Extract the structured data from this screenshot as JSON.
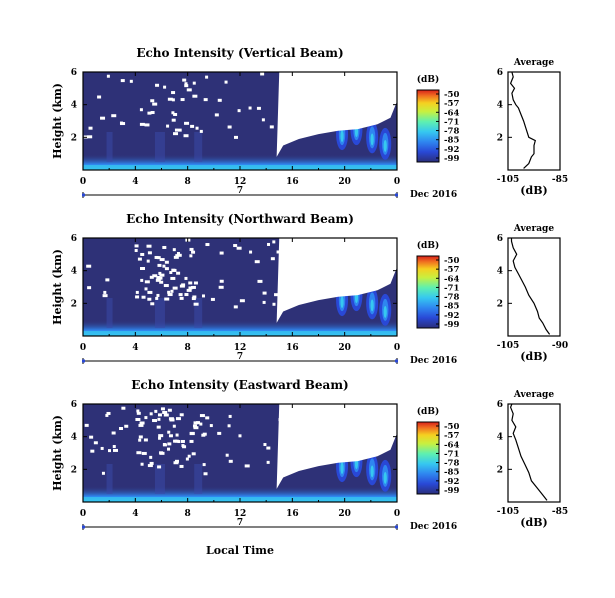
{
  "chart_data": [
    {
      "type": "heatmap",
      "title": "Echo Intensity (Vertical Beam)",
      "ylabel": "Height (km)",
      "xlabel": "",
      "x_ticks": [
        "0",
        "4",
        "8",
        "12",
        "16",
        "20",
        "0"
      ],
      "y_ticks": [
        "2",
        "4",
        "6"
      ],
      "date_day": "7",
      "date_label": "Dec 2016",
      "xlim_hours": [
        0,
        24
      ],
      "ylim_km": [
        0,
        6
      ],
      "colorbar": {
        "unit": "(dB)",
        "ticks": [
          "-50",
          "-57",
          "-64",
          "-71",
          "-78",
          "-85",
          "-92",
          "-99"
        ]
      },
      "profile": {
        "title": "Average",
        "xlabel": "(dB)",
        "x_ticks": [
          "-105",
          "-85"
        ],
        "y_ticks": [
          "2",
          "4",
          "6"
        ],
        "xlim": [
          -105,
          -85
        ],
        "points": [
          [
            -99,
            0.1
          ],
          [
            -97,
            0.4
          ],
          [
            -96,
            0.8
          ],
          [
            -95,
            1.0
          ],
          [
            -95,
            1.5
          ],
          [
            -94.5,
            1.8
          ],
          [
            -97,
            2.0
          ],
          [
            -98,
            2.5
          ],
          [
            -99,
            3.0
          ],
          [
            -100,
            3.4
          ],
          [
            -101,
            3.8
          ],
          [
            -102,
            4.0
          ],
          [
            -103,
            4.3
          ],
          [
            -103.5,
            4.7
          ],
          [
            -102.5,
            5.0
          ],
          [
            -104,
            5.3
          ],
          [
            -103,
            5.7
          ],
          [
            -103.5,
            6.0
          ]
        ]
      }
    },
    {
      "type": "heatmap",
      "title": "Echo Intensity (Northward Beam)",
      "ylabel": "Height (km)",
      "xlabel": "",
      "x_ticks": [
        "0",
        "4",
        "8",
        "12",
        "16",
        "20",
        "0"
      ],
      "y_ticks": [
        "2",
        "4",
        "6"
      ],
      "date_day": "7",
      "date_label": "Dec 2016",
      "xlim_hours": [
        0,
        24
      ],
      "ylim_km": [
        0,
        6
      ],
      "colorbar": {
        "unit": "(dB)",
        "ticks": [
          "-50",
          "-57",
          "-64",
          "-71",
          "-78",
          "-85",
          "-92",
          "-99"
        ]
      },
      "profile": {
        "title": "Average",
        "xlabel": "(dB)",
        "x_ticks": [
          "-105",
          "-90"
        ],
        "y_ticks": [
          "2",
          "4",
          "6"
        ],
        "xlim": [
          -105,
          -90
        ],
        "points": [
          [
            -93,
            0.1
          ],
          [
            -94,
            0.4
          ],
          [
            -95,
            0.8
          ],
          [
            -96,
            1.1
          ],
          [
            -96.5,
            1.5
          ],
          [
            -97.5,
            2.0
          ],
          [
            -99,
            2.5
          ],
          [
            -100,
            3.0
          ],
          [
            -101,
            3.4
          ],
          [
            -102,
            3.8
          ],
          [
            -103,
            4.2
          ],
          [
            -103.5,
            4.6
          ],
          [
            -102.5,
            5.0
          ],
          [
            -103.5,
            5.4
          ],
          [
            -104,
            5.8
          ],
          [
            -104,
            6.0
          ]
        ]
      }
    },
    {
      "type": "heatmap",
      "title": "Echo Intensity (Eastward Beam)",
      "ylabel": "Height (km)",
      "xlabel": "Local Time",
      "x_ticks": [
        "0",
        "4",
        "8",
        "12",
        "16",
        "20",
        "0"
      ],
      "y_ticks": [
        "2",
        "4",
        "6"
      ],
      "date_day": "7",
      "date_label": "Dec 2016",
      "xlim_hours": [
        0,
        24
      ],
      "ylim_km": [
        0,
        6
      ],
      "colorbar": {
        "unit": "(dB)",
        "ticks": [
          "-50",
          "-57",
          "-64",
          "-71",
          "-78",
          "-85",
          "-92",
          "-99"
        ]
      },
      "profile": {
        "title": "Average",
        "xlabel": "(dB)",
        "x_ticks": [
          "-105",
          "-85"
        ],
        "y_ticks": [
          "2",
          "4",
          "6"
        ],
        "xlim": [
          -105,
          -85
        ],
        "points": [
          [
            -90,
            0.1
          ],
          [
            -92,
            0.5
          ],
          [
            -94,
            0.9
          ],
          [
            -96,
            1.3
          ],
          [
            -97,
            1.8
          ],
          [
            -98.5,
            2.3
          ],
          [
            -100,
            2.8
          ],
          [
            -101,
            3.3
          ],
          [
            -102,
            3.8
          ],
          [
            -103,
            4.2
          ],
          [
            -102,
            4.6
          ],
          [
            -103.5,
            5.0
          ],
          [
            -103,
            5.4
          ],
          [
            -104,
            5.8
          ],
          [
            -103.5,
            6.0
          ]
        ]
      }
    }
  ],
  "colors": {
    "background_field": "#2e3177",
    "colormap": [
      "#2a2e7a",
      "#2948d6",
      "#2f86f0",
      "#36c8f0",
      "#5ef0b0",
      "#c8f040",
      "#f5d020",
      "#f07020",
      "#d8201a"
    ]
  }
}
